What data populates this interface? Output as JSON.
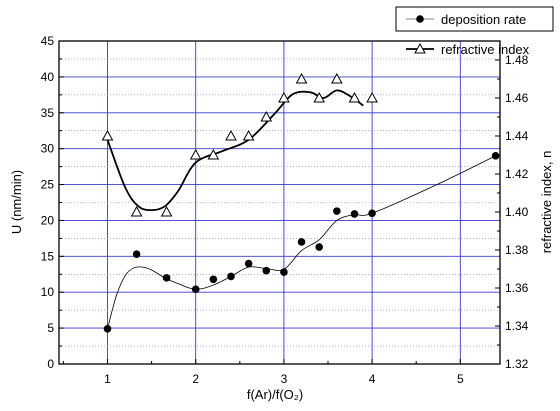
{
  "chart_data": {
    "type": "line",
    "xlabel": "f(Ar)/f(O₂)",
    "ylabel_left": "U (nm/min)",
    "ylabel_right": "refractive index, n",
    "xlim": [
      0.45,
      5.45
    ],
    "ylim_left": [
      0,
      45
    ],
    "ylim_right": [
      1.32,
      1.49
    ],
    "x_ticks": [
      1,
      2,
      3,
      4,
      5
    ],
    "y_ticks_left": [
      0,
      5,
      10,
      15,
      20,
      25,
      30,
      35,
      40,
      45
    ],
    "y_ticks_right": [
      1.32,
      1.34,
      1.36,
      1.38,
      1.4,
      1.42,
      1.44,
      1.46,
      1.48
    ],
    "grid": true,
    "legend_position": "top-right",
    "series": [
      {
        "name": "deposition rate",
        "axis": "left",
        "marker": "filled-circle",
        "x": [
          1.0,
          1.33,
          1.5,
          1.67,
          2.0,
          2.2,
          2.4,
          2.6,
          2.8,
          3.0,
          3.2,
          3.4,
          3.6,
          3.8,
          4.0,
          5.4
        ],
        "y": [
          4.9,
          15.3,
          13.4,
          12.0,
          10.4,
          11.8,
          12.2,
          14.0,
          13.0,
          12.8,
          17.0,
          16.3,
          21.3,
          20.9,
          21.0,
          29.0
        ],
        "markers_x": [
          1.0,
          1.33,
          1.67,
          2.0,
          2.2,
          2.4,
          2.6,
          2.8,
          3.0,
          3.2,
          3.4,
          3.6,
          3.8,
          4.0,
          5.4
        ],
        "markers_y": [
          4.9,
          15.3,
          12.0,
          10.4,
          11.8,
          12.2,
          14.0,
          13.0,
          12.8,
          17.0,
          16.3,
          21.3,
          20.9,
          21.0,
          29.0
        ],
        "curve_x": [
          1.0,
          1.1,
          1.2,
          1.3,
          1.4,
          1.5,
          1.65,
          1.8,
          2.0,
          2.2,
          2.4,
          2.6,
          2.8,
          3.0,
          3.2,
          3.4,
          3.6,
          3.8,
          4.0,
          4.7,
          5.4
        ],
        "curve_y": [
          4.9,
          9.5,
          12.3,
          13.4,
          13.5,
          13.1,
          12.0,
          11.2,
          10.4,
          11.0,
          12.2,
          13.5,
          13.3,
          13.2,
          15.8,
          17.3,
          20.0,
          20.8,
          21.0,
          24.8,
          29.0
        ]
      },
      {
        "name": "refractive index",
        "axis": "right",
        "marker": "open-triangle",
        "x": [
          1.0,
          1.33,
          1.67,
          2.0,
          2.2,
          2.4,
          2.6,
          2.8,
          3.0,
          3.2,
          3.4,
          3.6,
          3.8,
          4.0
        ],
        "y": [
          1.44,
          1.4,
          1.4,
          1.43,
          1.43,
          1.44,
          1.44,
          1.45,
          1.46,
          1.47,
          1.46,
          1.47,
          1.46,
          1.46
        ],
        "curve_x": [
          1.0,
          1.2,
          1.35,
          1.5,
          1.65,
          1.8,
          2.0,
          2.3,
          2.6,
          2.9,
          3.1,
          3.3,
          3.45,
          3.6,
          3.75,
          3.9
        ],
        "curve_y": [
          1.438,
          1.413,
          1.403,
          1.401,
          1.403,
          1.411,
          1.426,
          1.432,
          1.438,
          1.452,
          1.462,
          1.463,
          1.46,
          1.464,
          1.461,
          1.456
        ]
      }
    ]
  }
}
